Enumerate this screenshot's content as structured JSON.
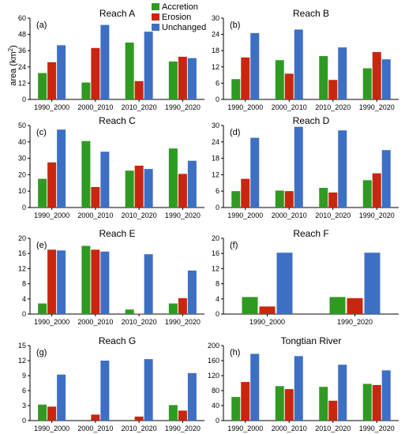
{
  "legend": [
    {
      "name": "Accretion",
      "color": "#2f9a22"
    },
    {
      "name": "Erosion",
      "color": "#c8260f"
    },
    {
      "name": "Unchanged",
      "color": "#3d6fc4"
    }
  ],
  "ylabel_main": "area (km",
  "ylabel_sup": "2",
  "ylabel_end": ")",
  "chart_data": [
    {
      "type": "bar",
      "label": "(a)",
      "title": "Reach A",
      "categories": [
        "1990_2000",
        "2000_2010",
        "2010_2020",
        "1990_2020"
      ],
      "yticks": [
        0,
        12,
        24,
        36,
        48,
        60
      ],
      "ylim": [
        0,
        60
      ],
      "series": [
        {
          "name": "Accretion",
          "values": [
            19.5,
            12.5,
            42,
            28
          ]
        },
        {
          "name": "Erosion",
          "values": [
            27.5,
            38,
            13.5,
            31.5
          ]
        },
        {
          "name": "Unchanged",
          "values": [
            40,
            55,
            50,
            30.5
          ]
        }
      ]
    },
    {
      "type": "bar",
      "label": "(b)",
      "title": "Reach B",
      "categories": [
        "1990_2000",
        "2000_2010",
        "2010_2020",
        "1990_2020"
      ],
      "yticks": [
        0,
        6,
        12,
        18,
        24,
        30
      ],
      "ylim": [
        0,
        30
      ],
      "series": [
        {
          "name": "Accretion",
          "values": [
            7.5,
            14.5,
            16,
            11.5
          ]
        },
        {
          "name": "Erosion",
          "values": [
            15.5,
            9.5,
            7.2,
            17.5
          ]
        },
        {
          "name": "Unchanged",
          "values": [
            24.5,
            25.8,
            19.2,
            14.8
          ]
        }
      ]
    },
    {
      "type": "bar",
      "label": "(c)",
      "title": "Reach C",
      "categories": [
        "1990_2000",
        "2000_2010",
        "2010_2020",
        "1990_2020"
      ],
      "yticks": [
        0,
        10,
        20,
        30,
        40,
        50
      ],
      "ylim": [
        0,
        50
      ],
      "series": [
        {
          "name": "Accretion",
          "values": [
            17.5,
            40.5,
            22.5,
            36
          ]
        },
        {
          "name": "Erosion",
          "values": [
            27.5,
            12.5,
            25.5,
            20.5
          ]
        },
        {
          "name": "Unchanged",
          "values": [
            47.5,
            34,
            23.5,
            28.5
          ]
        }
      ]
    },
    {
      "type": "bar",
      "label": "(d)",
      "title": "Reach D",
      "categories": [
        "1990_2000",
        "2000_2010",
        "2010_2020",
        "1990_2020"
      ],
      "yticks": [
        0,
        6,
        12,
        18,
        24,
        30
      ],
      "ylim": [
        0,
        30
      ],
      "series": [
        {
          "name": "Accretion",
          "values": [
            6,
            6.2,
            7.2,
            10
          ]
        },
        {
          "name": "Erosion",
          "values": [
            10.5,
            6,
            5.5,
            12.5
          ]
        },
        {
          "name": "Unchanged",
          "values": [
            25.5,
            29.5,
            28.2,
            21
          ]
        }
      ]
    },
    {
      "type": "bar",
      "label": "(e)",
      "title": "Reach E",
      "categories": [
        "1990_2000",
        "2000_2010",
        "2010_2020",
        "1990_2020"
      ],
      "yticks": [
        0,
        4,
        8,
        12,
        16,
        20
      ],
      "ylim": [
        0,
        20
      ],
      "series": [
        {
          "name": "Accretion",
          "values": [
            2.8,
            18,
            1.2,
            2.8
          ]
        },
        {
          "name": "Erosion",
          "values": [
            17,
            17,
            0.1,
            4.2
          ]
        },
        {
          "name": "Unchanged",
          "values": [
            16.8,
            16.5,
            15.8,
            11.5
          ]
        }
      ]
    },
    {
      "type": "bar",
      "label": "(f)",
      "title": "Reach F",
      "categories": [
        "1990_2000",
        "1990_2020"
      ],
      "yticks": [
        0,
        4,
        8,
        12,
        16,
        20
      ],
      "ylim": [
        0,
        20
      ],
      "series": [
        {
          "name": "Accretion",
          "values": [
            4.5,
            4.5
          ]
        },
        {
          "name": "Erosion",
          "values": [
            2,
            4.2
          ]
        },
        {
          "name": "Unchanged",
          "values": [
            16.2,
            16.2
          ]
        }
      ]
    },
    {
      "type": "bar",
      "label": "(g)",
      "title": "Reach G",
      "categories": [
        "1990_2000",
        "2000_2010",
        "2010_2020",
        "1990_2020"
      ],
      "yticks": [
        0,
        3,
        6,
        9,
        12,
        15
      ],
      "ylim": [
        0,
        15
      ],
      "series": [
        {
          "name": "Accretion",
          "values": [
            3.2,
            0,
            0,
            3.1
          ]
        },
        {
          "name": "Erosion",
          "values": [
            2.8,
            1.2,
            0.8,
            2
          ]
        },
        {
          "name": "Unchanged",
          "values": [
            9.2,
            12,
            12.3,
            9.5
          ]
        }
      ]
    },
    {
      "type": "bar",
      "label": "(h)",
      "title": "Tongtian River",
      "categories": [
        "1990_2000",
        "2000_2010",
        "2010_2020",
        "1990_2020"
      ],
      "yticks": [
        0,
        40,
        80,
        120,
        160,
        200
      ],
      "ylim": [
        0,
        200
      ],
      "series": [
        {
          "name": "Accretion",
          "values": [
            63,
            92,
            90,
            98
          ]
        },
        {
          "name": "Erosion",
          "values": [
            103,
            84,
            53,
            95
          ]
        },
        {
          "name": "Unchanged",
          "values": [
            178,
            172,
            149,
            134
          ]
        }
      ]
    }
  ]
}
